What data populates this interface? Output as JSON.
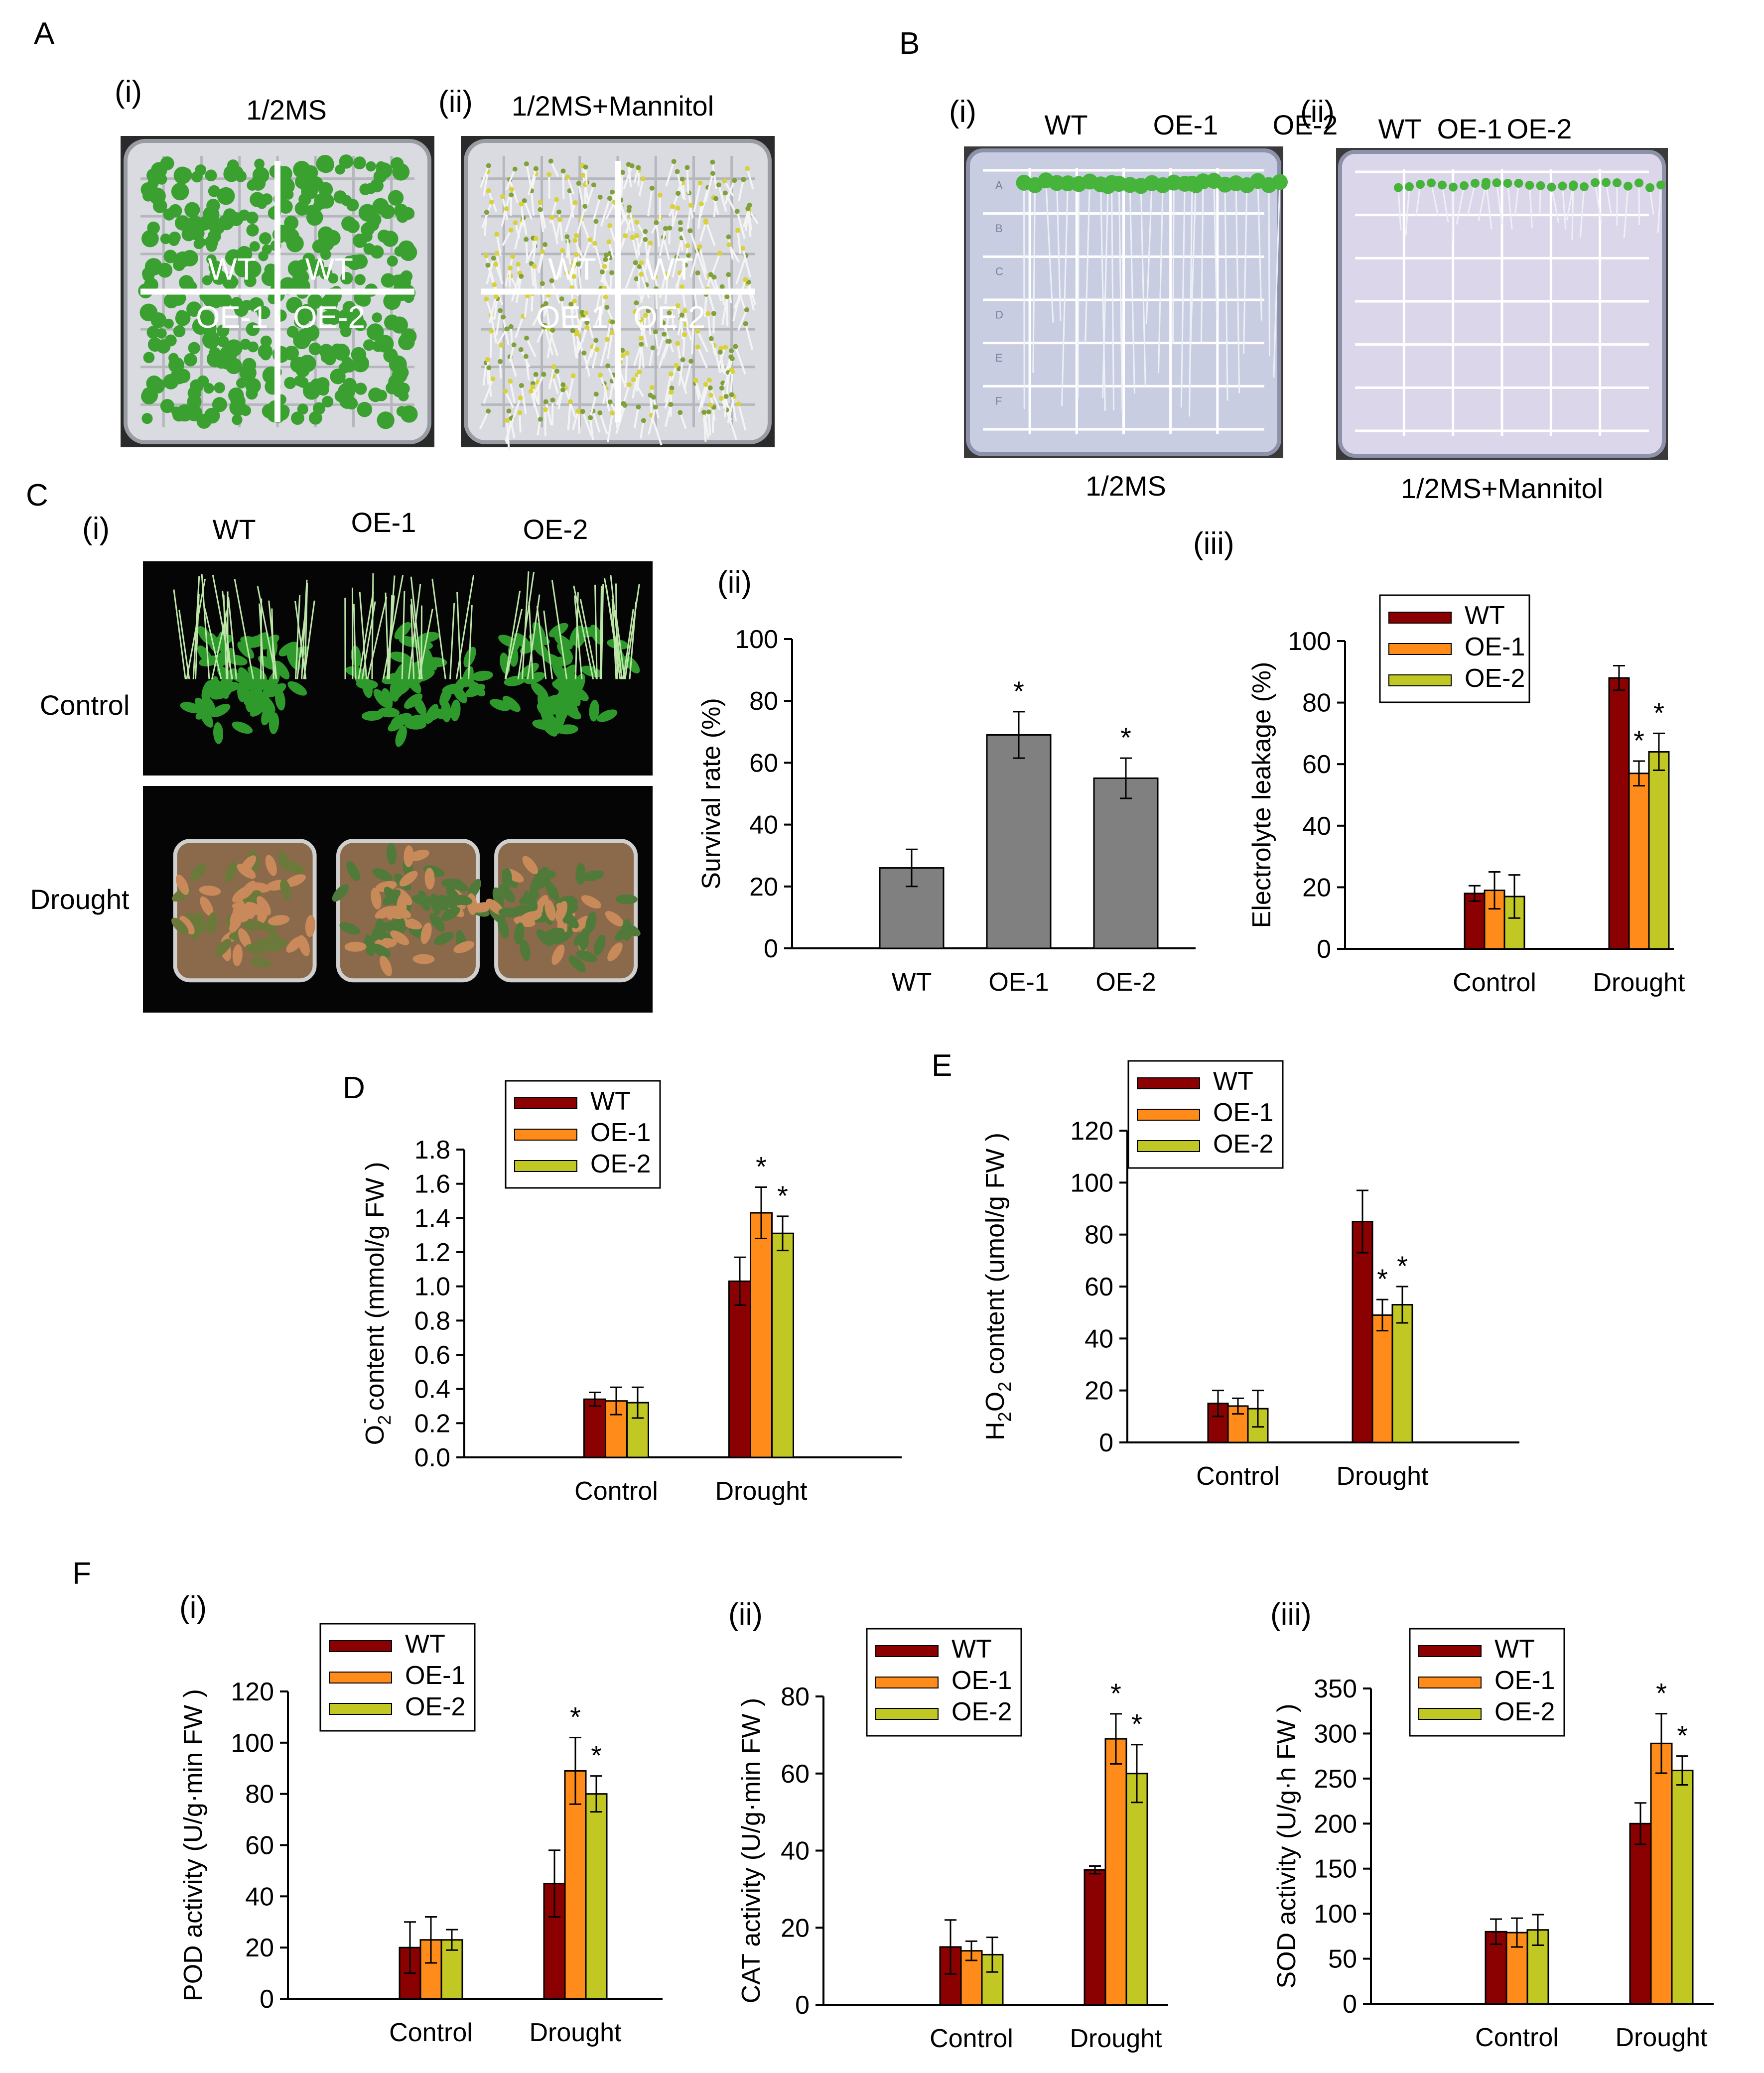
{
  "colors": {
    "wt": "#8b0000",
    "oe1": "#ff8c1a",
    "oe2": "#c2c823",
    "gray_bar": "#808080",
    "photo_bg": "#050505",
    "plate_bg": "#d9dbe1",
    "plate_bg_b": "#c9cde2",
    "plate_bg_b2": "#dcd6ea",
    "leaf_green": "#3aa02f"
  },
  "panels": {
    "A": {
      "letter": "A",
      "i": {
        "roman": "(i)",
        "title": "1/2MS",
        "labels": [
          "WT",
          "WT",
          "OE-1",
          "OE-2"
        ]
      },
      "ii": {
        "roman": "(ii)",
        "title": "1/2MS+Mannitol",
        "labels": [
          "WT",
          "WT",
          "OE-1",
          "OE-2"
        ]
      }
    },
    "B": {
      "letter": "B",
      "i": {
        "roman": "(i)",
        "caption": "1/2MS",
        "header": [
          "WT",
          "OE-1",
          "OE-2"
        ],
        "row_labels": [
          "A",
          "B",
          "C",
          "D",
          "E",
          "F"
        ]
      },
      "ii": {
        "roman": "(ii)",
        "caption": "1/2MS+Mannitol",
        "header": [
          "WT",
          "OE-1",
          "OE-2"
        ]
      }
    },
    "C": {
      "letter": "C",
      "i": {
        "roman": "(i)",
        "columns": [
          "WT",
          "OE-1",
          "OE-2"
        ],
        "rows": [
          "Control",
          "Drought"
        ]
      },
      "ii": {
        "roman": "(ii)"
      },
      "iii": {
        "roman": "(iii)"
      }
    },
    "D": {
      "letter": "D"
    },
    "E": {
      "letter": "E"
    },
    "F": {
      "letter": "F",
      "i": {
        "roman": "(i)"
      },
      "ii": {
        "roman": "(ii)"
      },
      "iii": {
        "roman": "(iii)"
      }
    }
  },
  "chart_data": [
    {
      "id": "C-ii",
      "type": "bar",
      "categories": [
        "WT",
        "OE-1",
        "OE-2"
      ],
      "values": [
        26,
        69,
        55
      ],
      "errors": [
        6,
        7.5,
        6.5
      ],
      "significance": [
        "",
        "*",
        "*"
      ],
      "ylabel": "Survival rate (%)",
      "ylim": [
        0,
        100
      ],
      "yticks": [
        "0",
        "20",
        "40",
        "60",
        "80",
        "100"
      ]
    },
    {
      "id": "C-iii",
      "type": "bar",
      "categories": [
        "Control",
        "Drought"
      ],
      "legend": [
        "WT",
        "OE-1",
        "OE-2"
      ],
      "series": [
        {
          "name": "WT",
          "values": [
            18,
            88
          ],
          "errors": [
            2.5,
            4
          ],
          "sig": [
            "",
            ""
          ]
        },
        {
          "name": "OE-1",
          "values": [
            19,
            57
          ],
          "errors": [
            6,
            4
          ],
          "sig": [
            "",
            "*"
          ]
        },
        {
          "name": "OE-2",
          "values": [
            17,
            64
          ],
          "errors": [
            7,
            6
          ],
          "sig": [
            "",
            "*"
          ]
        }
      ],
      "ylabel": "Electrolyte leakage (%)",
      "ylim": [
        0,
        100
      ],
      "yticks": [
        "0",
        "20",
        "40",
        "60",
        "80",
        "100"
      ]
    },
    {
      "id": "D",
      "type": "bar",
      "categories": [
        "Control",
        "Drought"
      ],
      "legend": [
        "WT",
        "OE-1",
        "OE-2"
      ],
      "series": [
        {
          "name": "WT",
          "values": [
            0.34,
            1.03
          ],
          "errors": [
            0.04,
            0.14
          ],
          "sig": [
            "",
            ""
          ]
        },
        {
          "name": "OE-1",
          "values": [
            0.33,
            1.43
          ],
          "errors": [
            0.08,
            0.15
          ],
          "sig": [
            "",
            "*"
          ]
        },
        {
          "name": "OE-2",
          "values": [
            0.32,
            1.31
          ],
          "errors": [
            0.09,
            0.1
          ],
          "sig": [
            "",
            "*"
          ]
        }
      ],
      "ylabel_parts": [
        "O",
        "2",
        "-",
        " content (mmol/g FW   )"
      ],
      "ylim": [
        0,
        1.8
      ],
      "yticks": [
        "0.0",
        "0.2",
        "0.4",
        "0.6",
        "0.8",
        "1.0",
        "1.2",
        "1.4",
        "1.6",
        "1.8"
      ]
    },
    {
      "id": "E",
      "type": "bar",
      "categories": [
        "Control",
        "Drought"
      ],
      "legend": [
        "WT",
        "OE-1",
        "OE-2"
      ],
      "series": [
        {
          "name": "WT",
          "values": [
            15,
            85
          ],
          "errors": [
            5,
            12
          ],
          "sig": [
            "",
            ""
          ]
        },
        {
          "name": "OE-1",
          "values": [
            14,
            49
          ],
          "errors": [
            3,
            6
          ],
          "sig": [
            "",
            "*"
          ]
        },
        {
          "name": "OE-2",
          "values": [
            13,
            53
          ],
          "errors": [
            7,
            7
          ],
          "sig": [
            "",
            "*"
          ]
        }
      ],
      "ylabel_parts": [
        "H",
        "2",
        "O",
        "2",
        " content (umol/g FW   )"
      ],
      "ylim": [
        0,
        120
      ],
      "yticks": [
        "0",
        "20",
        "40",
        "60",
        "80",
        "100",
        "120"
      ]
    },
    {
      "id": "F-i",
      "type": "bar",
      "categories": [
        "Control",
        "Drought"
      ],
      "legend": [
        "WT",
        "OE-1",
        "OE-2"
      ],
      "series": [
        {
          "name": "WT",
          "values": [
            20,
            45
          ],
          "errors": [
            10,
            13
          ],
          "sig": [
            "",
            ""
          ]
        },
        {
          "name": "OE-1",
          "values": [
            23,
            89
          ],
          "errors": [
            9,
            13
          ],
          "sig": [
            "",
            "*"
          ]
        },
        {
          "name": "OE-2",
          "values": [
            23,
            80
          ],
          "errors": [
            4,
            7
          ],
          "sig": [
            "",
            "*"
          ]
        }
      ],
      "ylabel": "POD activity (U/g·min FW   )",
      "ylim": [
        0,
        120
      ],
      "yticks": [
        "0",
        "20",
        "40",
        "60",
        "80",
        "100",
        "120"
      ]
    },
    {
      "id": "F-ii",
      "type": "bar",
      "categories": [
        "Control",
        "Drought"
      ],
      "legend": [
        "WT",
        "OE-1",
        "OE-2"
      ],
      "series": [
        {
          "name": "WT",
          "values": [
            15,
            35
          ],
          "errors": [
            7,
            1
          ],
          "sig": [
            "",
            ""
          ]
        },
        {
          "name": "OE-1",
          "values": [
            14,
            69
          ],
          "errors": [
            2.5,
            6.5
          ],
          "sig": [
            "",
            "*"
          ]
        },
        {
          "name": "OE-2",
          "values": [
            13,
            60
          ],
          "errors": [
            4.5,
            7.5
          ],
          "sig": [
            "",
            "*"
          ]
        }
      ],
      "ylabel": "CAT activity (U/g·min FW   )",
      "ylim": [
        0,
        80
      ],
      "yticks": [
        "0",
        "20",
        "40",
        "60",
        "80"
      ]
    },
    {
      "id": "F-iii",
      "type": "bar",
      "categories": [
        "Control",
        "Drought"
      ],
      "legend": [
        "WT",
        "OE-1",
        "OE-2"
      ],
      "series": [
        {
          "name": "WT",
          "values": [
            80,
            200
          ],
          "errors": [
            14,
            23
          ],
          "sig": [
            "",
            ""
          ]
        },
        {
          "name": "OE-1",
          "values": [
            79,
            289
          ],
          "errors": [
            16,
            33
          ],
          "sig": [
            "",
            "*"
          ]
        },
        {
          "name": "OE-2",
          "values": [
            82,
            259
          ],
          "errors": [
            17,
            16
          ],
          "sig": [
            "",
            "*"
          ]
        }
      ],
      "ylabel": "SOD activity (U/g·h FW )",
      "ylim": [
        0,
        350
      ],
      "yticks": [
        "0",
        "50",
        "100",
        "150",
        "200",
        "250",
        "300",
        "350"
      ]
    }
  ]
}
